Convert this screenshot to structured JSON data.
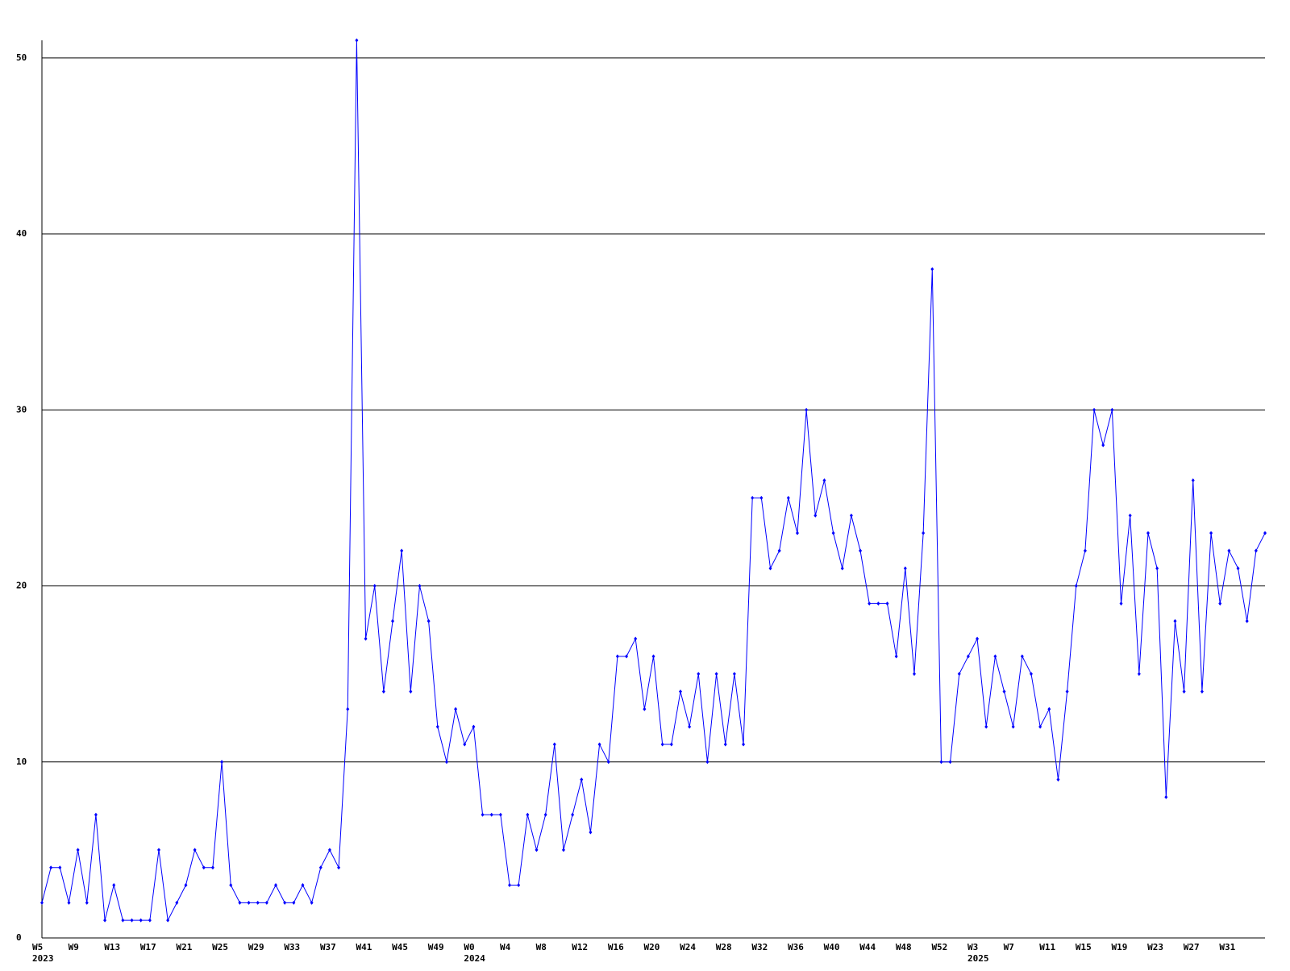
{
  "chart_data": {
    "type": "line",
    "categories": [
      "W5",
      null,
      null,
      null,
      "W9",
      null,
      null,
      null,
      "W13",
      null,
      null,
      null,
      "W17",
      null,
      null,
      null,
      "W21",
      null,
      null,
      null,
      "W25",
      null,
      null,
      null,
      "W29",
      null,
      null,
      null,
      "W33",
      null,
      null,
      null,
      "W37",
      null,
      null,
      null,
      "W41",
      null,
      null,
      null,
      "W45",
      null,
      null,
      null,
      "W49",
      null,
      null,
      null,
      "W0",
      null,
      null,
      null,
      "W4",
      null,
      null,
      null,
      "W8",
      null,
      null,
      null,
      "W12",
      null,
      null,
      null,
      "W16",
      null,
      null,
      null,
      "W20",
      null,
      null,
      null,
      "W24",
      null,
      null,
      null,
      "W28",
      null,
      null,
      null,
      "W32",
      null,
      null,
      null,
      "W36",
      null,
      null,
      null,
      "W40",
      null,
      null,
      null,
      "W44",
      null,
      null,
      null,
      "W48",
      null,
      null,
      null,
      "W52",
      null,
      null,
      null,
      "W3",
      null,
      null,
      null,
      "W7",
      null,
      null,
      null,
      "W11",
      null,
      null,
      null,
      "W15",
      null,
      null,
      null,
      "W19",
      null,
      null,
      null,
      "W23",
      null,
      null,
      null,
      "W27",
      null,
      null,
      null,
      "W31",
      null,
      null,
      null,
      null
    ],
    "x_years": [
      "2023",
      null,
      null,
      null,
      null,
      null,
      null,
      null,
      null,
      null,
      null,
      null,
      null,
      null,
      null,
      null,
      null,
      null,
      null,
      null,
      null,
      null,
      null,
      null,
      null,
      null,
      null,
      null,
      null,
      null,
      null,
      null,
      null,
      null,
      null,
      null,
      null,
      null,
      null,
      null,
      null,
      null,
      null,
      null,
      null,
      null,
      null,
      null,
      "2024",
      null,
      null,
      null,
      null,
      null,
      null,
      null,
      null,
      null,
      null,
      null,
      null,
      null,
      null,
      null,
      null,
      null,
      null,
      null,
      null,
      null,
      null,
      null,
      null,
      null,
      null,
      null,
      null,
      null,
      null,
      null,
      null,
      null,
      null,
      null,
      null,
      null,
      null,
      null,
      null,
      null,
      null,
      null,
      null,
      null,
      null,
      null,
      null,
      null,
      null,
      null,
      null,
      null,
      null,
      null,
      "2025",
      null,
      null,
      null,
      null,
      null,
      null,
      null,
      null,
      null,
      null,
      null,
      null,
      null,
      null,
      null,
      null,
      null,
      null,
      null,
      null,
      null,
      null,
      null,
      null,
      null,
      null,
      null,
      null,
      null,
      null,
      null,
      null
    ],
    "series": [
      {
        "color": "#0000ff",
        "values": [
          2,
          4,
          4,
          2,
          5,
          2,
          7,
          1,
          3,
          1,
          1,
          1,
          1,
          5,
          1,
          2,
          3,
          5,
          4,
          4,
          10,
          3,
          2,
          2,
          2,
          2,
          3,
          2,
          2,
          3,
          2,
          4,
          5,
          4,
          13,
          51,
          17,
          20,
          14,
          18,
          22,
          14,
          20,
          18,
          12,
          10,
          13,
          11,
          12,
          7,
          7,
          7,
          3,
          3,
          7,
          5,
          7,
          11,
          5,
          7,
          9,
          6,
          11,
          10,
          16,
          16,
          17,
          13,
          16,
          11,
          11,
          14,
          12,
          15,
          10,
          15,
          11,
          15,
          11,
          25,
          25,
          21,
          22,
          25,
          23,
          30,
          24,
          26,
          23,
          21,
          24,
          22,
          19,
          19,
          19,
          16,
          21,
          15,
          23,
          38,
          10,
          10,
          15,
          16,
          17,
          12,
          16,
          14,
          12,
          16,
          15,
          12,
          13,
          9,
          14,
          20,
          22,
          30,
          28,
          30,
          19,
          24,
          15,
          23,
          21,
          8,
          18,
          14,
          26,
          14,
          23,
          19,
          22,
          21,
          18,
          22,
          23
        ]
      }
    ],
    "ylim": [
      0,
      51
    ],
    "yticks": [
      0,
      10,
      20,
      30,
      40,
      50
    ],
    "grid": true
  }
}
